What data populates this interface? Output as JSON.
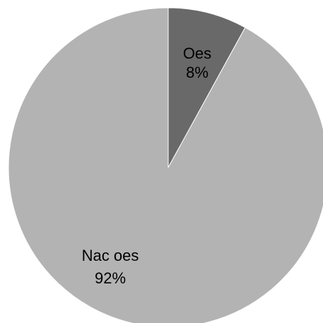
{
  "chart_data": {
    "type": "pie",
    "start_angle_deg": 0,
    "direction": "clockwise",
    "slices": [
      {
        "name": "Oes",
        "value": 8,
        "label_pct": "8%",
        "color": "#696969"
      },
      {
        "name": "Nac oes",
        "value": 92,
        "label_pct": "92%",
        "color": "#b3b3b3"
      }
    ],
    "stroke_color": "#ffffff"
  }
}
